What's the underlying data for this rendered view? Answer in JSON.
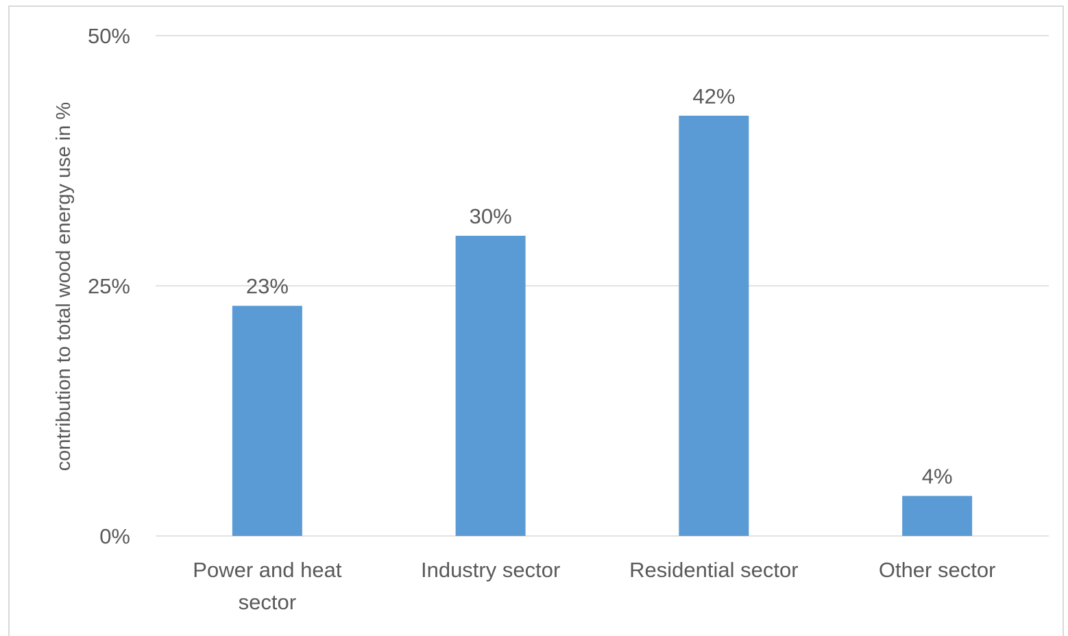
{
  "chart_data": {
    "type": "bar",
    "categories": [
      [
        "Power and heat",
        "sector"
      ],
      [
        "Industry sector"
      ],
      [
        "Residential sector"
      ],
      [
        "Other sector"
      ]
    ],
    "values": [
      23,
      30,
      42,
      4
    ],
    "data_labels": [
      "23%",
      "30%",
      "42%",
      "4%"
    ],
    "ylabel": "contribution to total wood energy use in %",
    "xlabel": "",
    "ylim": [
      0,
      50
    ],
    "yticks": [
      0,
      25,
      50
    ],
    "ytick_labels": [
      "0%",
      "25%",
      "50%"
    ],
    "grid": true,
    "legend": "none",
    "colors": {
      "bar": "#5b9bd5",
      "grid": "#d9d9d9",
      "text": "#595959"
    }
  }
}
